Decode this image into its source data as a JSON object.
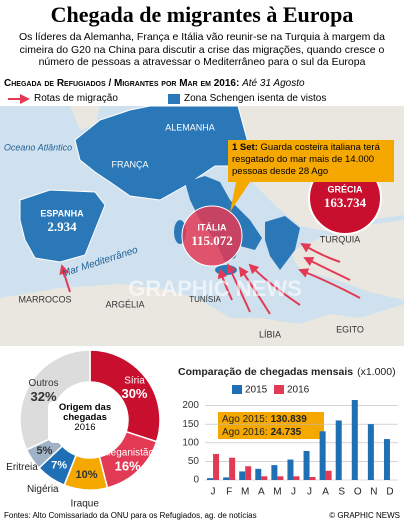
{
  "header": {
    "title": "Chegada de migrantes à Europa",
    "intro": "Os líderes da Alemanha, França e Itália vão reunir-se na Turquia à margem da cimeira do G20 na China para discutir a crise das migrações, quando cresce o número de pessoas a atravessar o Mediterrâneo para o sul da Europa",
    "subtitle": "Chegada de Refugiados / Migrantes por Mar em 2016:",
    "subtitle_note": "Até 31 Agosto"
  },
  "legend": {
    "routes": "Rotas de migração",
    "schengen": "Zona Schengen isenta de vistos"
  },
  "map": {
    "labels": [
      "Oceano Atlântico",
      "FRANÇA",
      "ALEMANHA",
      "Mar Mediterrâneo",
      "TURQUIA",
      "MARROCOS",
      "ARGÉLIA",
      "TUNÍSIA",
      "LÍBIA",
      "EGITO",
      "GRAPHIC NEWS"
    ],
    "arrivals": [
      {
        "country": "ESPANHA",
        "value": "2.934"
      },
      {
        "country": "ITÁLIA",
        "value": "115.072"
      },
      {
        "country": "GRÉCIA",
        "value": "163.734"
      }
    ],
    "callout": {
      "date": "1 Set:",
      "text": "Guarda costeira italiana terá resgatado do mar mais de 14.000 pessoas desde 28 Ago"
    }
  },
  "chart_data": [
    {
      "type": "donut",
      "title": "Origem das chegadas",
      "subtitle": "2016",
      "categories": [
        "Síria",
        "Afeganistão",
        "Iraque",
        "Nigéria",
        "Eritreia",
        "Outros"
      ],
      "values": [
        30,
        16,
        10,
        7,
        5,
        32
      ],
      "value_labels": [
        "30%",
        "16%",
        "10%",
        "7%",
        "5%",
        "32%"
      ],
      "colors": [
        "#c8102e",
        "#e23a55",
        "#f5a800",
        "#1f6fb5",
        "#9fb2c6",
        "#dcdcdc"
      ]
    },
    {
      "type": "bar",
      "title": "Comparação de chegadas mensais",
      "unit": "(x1.000)",
      "categories": [
        "J",
        "F",
        "M",
        "A",
        "M",
        "J",
        "J",
        "A",
        "S",
        "O",
        "N",
        "D"
      ],
      "series": [
        {
          "name": "2015",
          "color": "#1f6fb5",
          "values": [
            5,
            7,
            23,
            30,
            40,
            55,
            78,
            130.839,
            160,
            215,
            150,
            110
          ]
        },
        {
          "name": "2016",
          "color": "#e23a55",
          "values": [
            70,
            60,
            37,
            10,
            10,
            10,
            8,
            24.735,
            null,
            null,
            null,
            null
          ]
        }
      ],
      "ylim": [
        0,
        215
      ],
      "yticks": [
        0,
        50,
        100,
        150,
        200
      ],
      "grid": true,
      "annotations": [
        {
          "label": "Ago 2015:",
          "value": "130.839"
        },
        {
          "label": "Ago 2016:",
          "value": "24.735"
        }
      ]
    }
  ],
  "footer": {
    "source": "Fontes: Alto Comissariado da ONU para os Refugiados, ag. de notícias",
    "credit": "© GRAPHIC NEWS"
  }
}
